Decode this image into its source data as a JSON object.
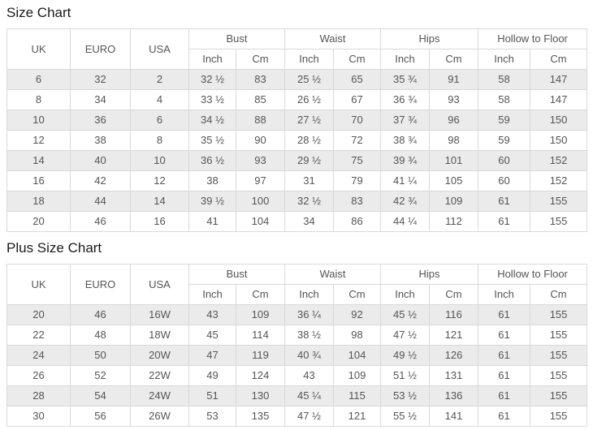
{
  "colors": {
    "stripe_row": "#ebebeb",
    "border": "#d9d9d9",
    "cell_text": "#555555",
    "title_text": "#1a1a1a",
    "background": "#ffffff"
  },
  "tables": [
    {
      "title": "Size Chart",
      "column_groups": [
        {
          "label": "UK",
          "span": 1
        },
        {
          "label": "EURO",
          "span": 1
        },
        {
          "label": "USA",
          "span": 1
        },
        {
          "label": "Bust",
          "span": 2
        },
        {
          "label": "Waist",
          "span": 2
        },
        {
          "label": "Hips",
          "span": 2
        },
        {
          "label": "Hollow to Floor",
          "span": 2
        }
      ],
      "sub_headers": [
        "Inch",
        "Cm",
        "Inch",
        "Cm",
        "Inch",
        "Cm",
        "Inch",
        "Cm"
      ],
      "rows": [
        [
          "6",
          "32",
          "2",
          "32 ½",
          "83",
          "25 ½",
          "65",
          "35 ¾",
          "91",
          "58",
          "147"
        ],
        [
          "8",
          "34",
          "4",
          "33 ½",
          "85",
          "26 ½",
          "67",
          "36 ¾",
          "93",
          "58",
          "147"
        ],
        [
          "10",
          "36",
          "6",
          "34 ½",
          "88",
          "27 ½",
          "70",
          "37 ¾",
          "96",
          "59",
          "150"
        ],
        [
          "12",
          "38",
          "8",
          "35 ½",
          "90",
          "28 ½",
          "72",
          "38 ¾",
          "98",
          "59",
          "150"
        ],
        [
          "14",
          "40",
          "10",
          "36 ½",
          "93",
          "29 ½",
          "75",
          "39 ¾",
          "101",
          "60",
          "152"
        ],
        [
          "16",
          "42",
          "12",
          "38",
          "97",
          "31",
          "79",
          "41 ¼",
          "105",
          "60",
          "152"
        ],
        [
          "18",
          "44",
          "14",
          "39 ½",
          "100",
          "32 ½",
          "83",
          "42 ¾",
          "109",
          "61",
          "155"
        ],
        [
          "20",
          "46",
          "16",
          "41",
          "104",
          "34",
          "86",
          "44 ¼",
          "112",
          "61",
          "155"
        ]
      ]
    },
    {
      "title": "Plus Size Chart",
      "column_groups": [
        {
          "label": "UK",
          "span": 1
        },
        {
          "label": "EURO",
          "span": 1
        },
        {
          "label": "USA",
          "span": 1
        },
        {
          "label": "Bust",
          "span": 2
        },
        {
          "label": "Waist",
          "span": 2
        },
        {
          "label": "Hips",
          "span": 2
        },
        {
          "label": "Hollow to Floor",
          "span": 2
        }
      ],
      "sub_headers": [
        "Inch",
        "Cm",
        "Inch",
        "Cm",
        "Inch",
        "Cm",
        "Inch",
        "Cm"
      ],
      "rows": [
        [
          "20",
          "46",
          "16W",
          "43",
          "109",
          "36 ¼",
          "92",
          "45 ½",
          "116",
          "61",
          "155"
        ],
        [
          "22",
          "48",
          "18W",
          "45",
          "114",
          "38 ½",
          "98",
          "47 ½",
          "121",
          "61",
          "155"
        ],
        [
          "24",
          "50",
          "20W",
          "47",
          "119",
          "40 ¾",
          "104",
          "49 ½",
          "126",
          "61",
          "155"
        ],
        [
          "26",
          "52",
          "22W",
          "49",
          "124",
          "43",
          "109",
          "51 ½",
          "131",
          "61",
          "155"
        ],
        [
          "28",
          "54",
          "24W",
          "51",
          "130",
          "45 ¼",
          "115",
          "53 ½",
          "136",
          "61",
          "155"
        ],
        [
          "30",
          "56",
          "26W",
          "53",
          "135",
          "47 ½",
          "121",
          "55 ½",
          "141",
          "61",
          "155"
        ]
      ]
    }
  ]
}
